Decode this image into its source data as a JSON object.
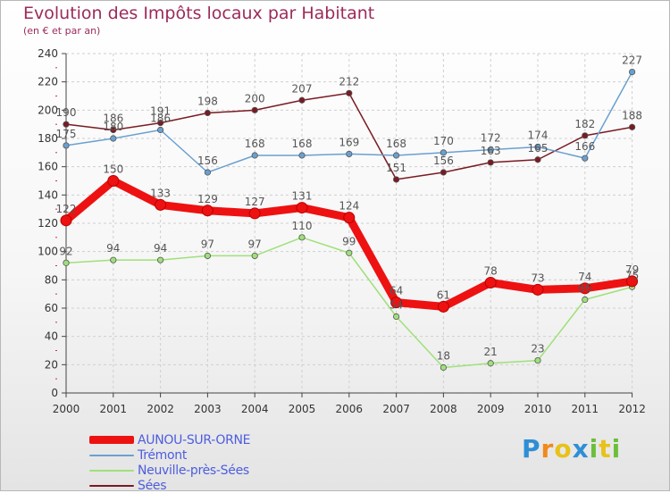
{
  "header": {
    "title": "Evolution des Impôts locaux par Habitant",
    "subtitle": "(en € et par an)"
  },
  "logo": {
    "letters": [
      "P",
      "r",
      "o",
      "x",
      "i",
      "t",
      "i"
    ]
  },
  "chart_data": {
    "type": "line",
    "title": "Evolution des Impôts locaux par Habitant",
    "subtitle": "(en € et par an)",
    "xlabel": "",
    "ylabel": "",
    "ylim": [
      0,
      240
    ],
    "yticks": [
      0,
      20,
      40,
      60,
      80,
      100,
      120,
      140,
      160,
      180,
      200,
      220,
      240
    ],
    "grid": true,
    "legend_position": "bottom-left",
    "categories": [
      "2000",
      "2001",
      "2002",
      "2003",
      "2004",
      "2005",
      "2006",
      "2007",
      "2008",
      "2009",
      "2010",
      "2011",
      "2012"
    ],
    "series": [
      {
        "name": "Sées",
        "color": "#7a1a22",
        "values": [
          190,
          186,
          191,
          198,
          200,
          207,
          212,
          151,
          156,
          163,
          165,
          182,
          188
        ]
      },
      {
        "name": "Trémont",
        "color": "#6aa0d0",
        "values": [
          175,
          180,
          186,
          156,
          168,
          168,
          169,
          168,
          170,
          172,
          174,
          166,
          227
        ]
      },
      {
        "name": "Neuville-près-Sées",
        "color": "#9fe07a",
        "values": [
          92,
          94,
          94,
          97,
          97,
          110,
          99,
          54,
          18,
          21,
          23,
          66,
          75
        ]
      },
      {
        "name": "AUNOU-SUR-ORNE",
        "color": "#ee1111",
        "values": [
          122,
          150,
          133,
          129,
          127,
          131,
          124,
          64,
          61,
          78,
          73,
          74,
          79
        ]
      }
    ],
    "legend": [
      "AUNOU-SUR-ORNE",
      "Trémont",
      "Neuville-près-Sées",
      "Sées"
    ]
  }
}
